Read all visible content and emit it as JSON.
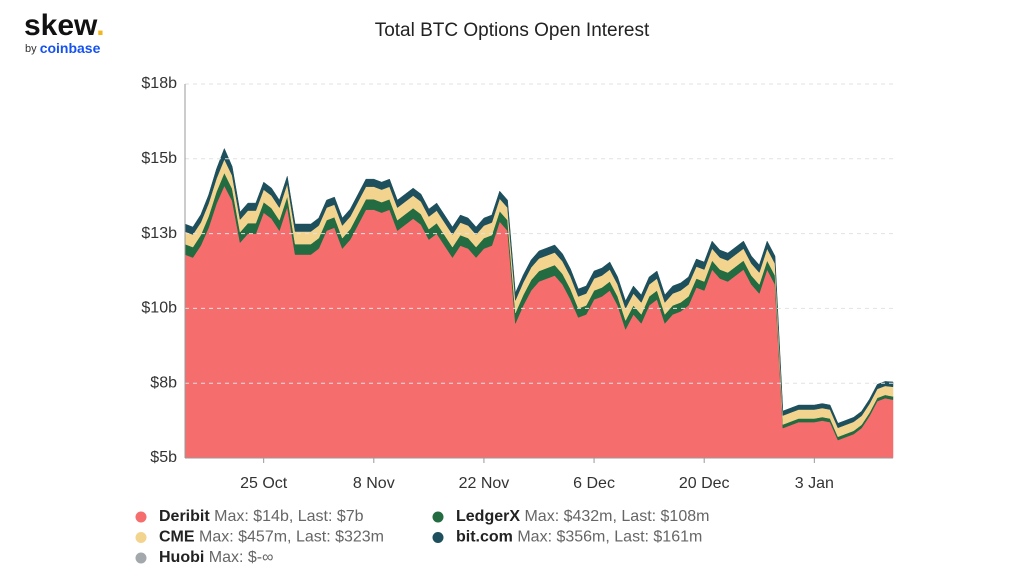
{
  "logo": {
    "word": "skew",
    "dot": ".",
    "by": "by",
    "brand": "coinbase"
  },
  "chart_data": {
    "type": "stacked_area",
    "title": "Total BTC Options Open Interest",
    "x": [
      "15 Oct",
      "16 Oct",
      "17 Oct",
      "18 Oct",
      "19 Oct",
      "20 Oct",
      "21 Oct",
      "22 Oct",
      "23 Oct",
      "24 Oct",
      "25 Oct",
      "26 Oct",
      "27 Oct",
      "28 Oct",
      "29 Oct",
      "30 Oct",
      "31 Oct",
      "1 Nov",
      "2 Nov",
      "3 Nov",
      "4 Nov",
      "5 Nov",
      "6 Nov",
      "7 Nov",
      "8 Nov",
      "9 Nov",
      "10 Nov",
      "11 Nov",
      "12 Nov",
      "13 Nov",
      "14 Nov",
      "15 Nov",
      "16 Nov",
      "17 Nov",
      "18 Nov",
      "19 Nov",
      "20 Nov",
      "21 Nov",
      "22 Nov",
      "23 Nov",
      "24 Nov",
      "25 Nov",
      "26 Nov",
      "27 Nov",
      "28 Nov",
      "29 Nov",
      "30 Nov",
      "1 Dec",
      "2 Dec",
      "3 Dec",
      "4 Dec",
      "5 Dec",
      "6 Dec",
      "7 Dec",
      "8 Dec",
      "9 Dec",
      "10 Dec",
      "11 Dec",
      "12 Dec",
      "13 Dec",
      "14 Dec",
      "15 Dec",
      "16 Dec",
      "17 Dec",
      "18 Dec",
      "19 Dec",
      "20 Dec",
      "21 Dec",
      "22 Dec",
      "23 Dec",
      "24 Dec",
      "25 Dec",
      "26 Dec",
      "27 Dec",
      "28 Dec",
      "29 Dec",
      "30 Dec",
      "31 Dec",
      "1 Jan",
      "2 Jan",
      "3 Jan",
      "4 Jan",
      "5 Jan",
      "6 Jan",
      "7 Jan",
      "8 Jan",
      "9 Jan",
      "10 Jan",
      "11 Jan",
      "12 Jan",
      "13 Jan"
    ],
    "xticks": [
      "25 Oct",
      "8 Nov",
      "22 Nov",
      "6 Dec",
      "20 Dec",
      "3 Jan"
    ],
    "ylim": [
      5,
      17.5
    ],
    "yticks": [
      {
        "value": 5,
        "label": "$5b"
      },
      {
        "value": 7.5,
        "label": "$8b"
      },
      {
        "value": 10,
        "label": "$10b"
      },
      {
        "value": 12.5,
        "label": "$13b"
      },
      {
        "value": 15,
        "label": "$15b"
      },
      {
        "value": 17.5,
        "label": "$18b"
      }
    ],
    "grid": true,
    "series": [
      {
        "name": "Deribit",
        "stats": "Max: $14b, Last: $7b",
        "color": "#f66d6d",
        "values": [
          11.8,
          11.7,
          12.1,
          12.7,
          13.5,
          14.1,
          13.6,
          12.2,
          12.5,
          12.5,
          13.2,
          13.0,
          12.6,
          13.4,
          11.8,
          11.8,
          11.8,
          12.0,
          12.6,
          12.7,
          12.0,
          12.3,
          12.8,
          13.3,
          13.3,
          13.2,
          13.3,
          12.6,
          12.8,
          13.0,
          12.8,
          12.3,
          12.5,
          12.1,
          11.7,
          12.1,
          12.0,
          11.7,
          12.0,
          12.1,
          12.9,
          12.6,
          9.5,
          10.1,
          10.6,
          10.9,
          11.0,
          11.1,
          10.8,
          10.3,
          9.7,
          9.8,
          10.3,
          10.4,
          10.6,
          10.1,
          9.3,
          9.8,
          9.5,
          10.1,
          10.3,
          9.5,
          9.8,
          9.9,
          10.1,
          10.7,
          10.6,
          11.3,
          11.0,
          10.9,
          11.1,
          11.3,
          10.8,
          10.5,
          11.3,
          10.8,
          6.0,
          6.1,
          6.2,
          6.2,
          6.2,
          6.25,
          6.2,
          5.6,
          5.7,
          5.8,
          6.0,
          6.4,
          6.9,
          7.0,
          6.95
        ]
      },
      {
        "name": "LedgerX",
        "stats": "Max: $432m, Last: $108m",
        "color": "#236b40",
        "values": [
          0.35,
          0.35,
          0.35,
          0.38,
          0.4,
          0.432,
          0.4,
          0.35,
          0.35,
          0.35,
          0.35,
          0.35,
          0.35,
          0.35,
          0.35,
          0.35,
          0.35,
          0.35,
          0.35,
          0.35,
          0.35,
          0.35,
          0.35,
          0.35,
          0.35,
          0.35,
          0.35,
          0.35,
          0.35,
          0.35,
          0.35,
          0.35,
          0.35,
          0.35,
          0.35,
          0.35,
          0.35,
          0.35,
          0.35,
          0.35,
          0.35,
          0.35,
          0.35,
          0.35,
          0.35,
          0.35,
          0.35,
          0.35,
          0.35,
          0.35,
          0.3,
          0.3,
          0.3,
          0.3,
          0.3,
          0.3,
          0.3,
          0.3,
          0.3,
          0.3,
          0.3,
          0.3,
          0.3,
          0.3,
          0.3,
          0.3,
          0.3,
          0.3,
          0.3,
          0.3,
          0.3,
          0.3,
          0.3,
          0.3,
          0.3,
          0.3,
          0.12,
          0.12,
          0.12,
          0.12,
          0.12,
          0.12,
          0.12,
          0.11,
          0.11,
          0.11,
          0.11,
          0.11,
          0.11,
          0.11,
          0.108
        ]
      },
      {
        "name": "CME",
        "stats": "Max: $457m, Last: $323m",
        "color": "#f2d48f",
        "values": [
          0.42,
          0.42,
          0.42,
          0.43,
          0.44,
          0.457,
          0.44,
          0.42,
          0.42,
          0.42,
          0.42,
          0.42,
          0.42,
          0.42,
          0.42,
          0.42,
          0.42,
          0.42,
          0.42,
          0.42,
          0.42,
          0.42,
          0.42,
          0.42,
          0.42,
          0.42,
          0.42,
          0.42,
          0.42,
          0.42,
          0.42,
          0.42,
          0.42,
          0.42,
          0.42,
          0.42,
          0.42,
          0.42,
          0.42,
          0.42,
          0.42,
          0.42,
          0.42,
          0.42,
          0.42,
          0.42,
          0.42,
          0.42,
          0.42,
          0.42,
          0.4,
          0.4,
          0.4,
          0.4,
          0.4,
          0.4,
          0.4,
          0.4,
          0.4,
          0.4,
          0.4,
          0.4,
          0.4,
          0.4,
          0.4,
          0.4,
          0.4,
          0.4,
          0.4,
          0.4,
          0.4,
          0.4,
          0.4,
          0.4,
          0.4,
          0.4,
          0.3,
          0.3,
          0.3,
          0.3,
          0.3,
          0.3,
          0.3,
          0.3,
          0.3,
          0.3,
          0.3,
          0.3,
          0.3,
          0.3,
          0.323
        ]
      },
      {
        "name": "bit.com",
        "stats": "Max: $356m, Last: $161m",
        "color": "#1d4f5c",
        "values": [
          0.25,
          0.25,
          0.26,
          0.28,
          0.32,
          0.356,
          0.3,
          0.25,
          0.25,
          0.25,
          0.25,
          0.25,
          0.25,
          0.25,
          0.25,
          0.25,
          0.25,
          0.25,
          0.25,
          0.25,
          0.25,
          0.25,
          0.25,
          0.25,
          0.25,
          0.25,
          0.25,
          0.25,
          0.25,
          0.25,
          0.25,
          0.25,
          0.25,
          0.25,
          0.25,
          0.25,
          0.25,
          0.25,
          0.25,
          0.25,
          0.25,
          0.25,
          0.25,
          0.25,
          0.25,
          0.25,
          0.25,
          0.25,
          0.25,
          0.25,
          0.25,
          0.25,
          0.25,
          0.25,
          0.25,
          0.25,
          0.25,
          0.25,
          0.25,
          0.25,
          0.25,
          0.25,
          0.25,
          0.25,
          0.25,
          0.25,
          0.25,
          0.25,
          0.25,
          0.25,
          0.25,
          0.25,
          0.25,
          0.25,
          0.25,
          0.25,
          0.15,
          0.15,
          0.15,
          0.15,
          0.15,
          0.15,
          0.15,
          0.15,
          0.15,
          0.15,
          0.15,
          0.15,
          0.15,
          0.15,
          0.161
        ]
      },
      {
        "name": "Huobi",
        "stats": "Max: $-∞",
        "color": "#a3a8ad",
        "values": [
          null,
          null,
          null,
          null,
          null,
          null,
          null,
          null,
          null,
          null,
          null,
          null,
          null,
          null,
          null,
          null,
          null,
          null,
          null,
          null,
          null,
          null,
          null,
          null,
          null,
          null,
          null,
          null,
          null,
          null,
          null,
          null,
          null,
          null,
          null,
          null,
          null,
          null,
          null,
          null,
          null,
          null,
          null,
          null,
          null,
          null,
          null,
          null,
          null,
          null,
          null,
          null,
          null,
          null,
          null,
          null,
          null,
          null,
          null,
          null,
          null,
          null,
          null,
          null,
          null,
          null,
          null,
          null,
          null,
          null,
          null,
          null,
          null,
          null,
          null,
          null,
          null,
          null,
          null,
          null,
          null,
          null,
          null,
          null,
          null,
          null,
          null,
          null,
          null,
          null,
          null
        ]
      }
    ]
  }
}
